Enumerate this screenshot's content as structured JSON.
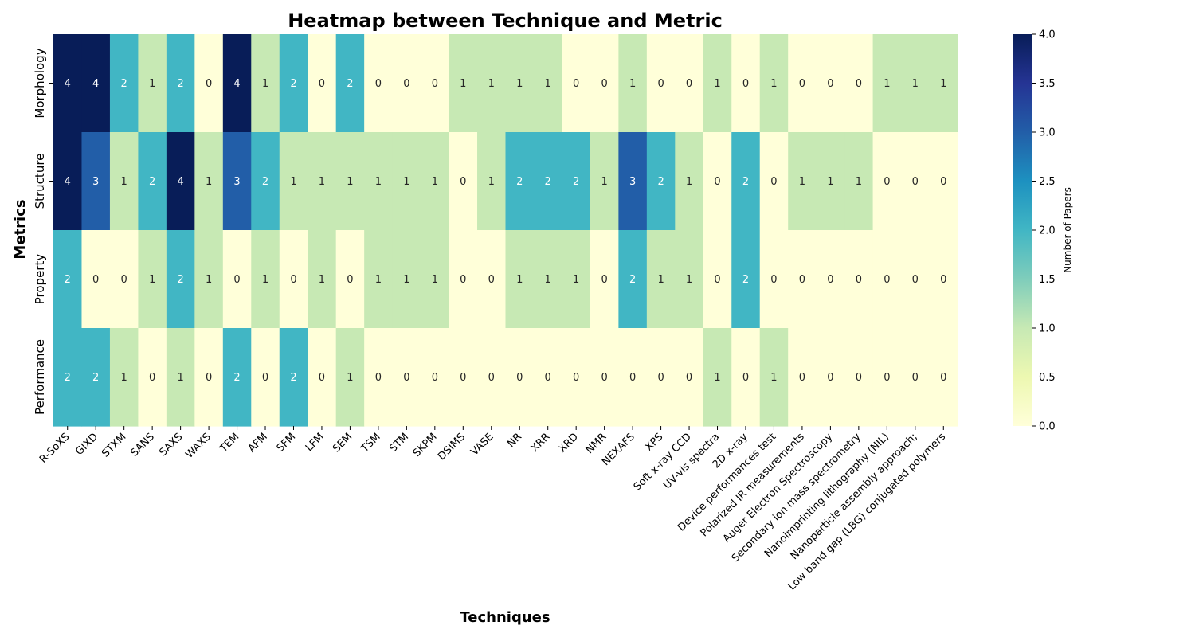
{
  "chart_data": {
    "type": "heatmap",
    "title": "Heatmap between Technique and Metric",
    "xlabel": "Techniques",
    "ylabel": "Metrics",
    "colorbar_label": "Number of Papers",
    "colormap": "YlGnBu",
    "vmin": 0,
    "vmax": 4,
    "colorbar_ticks": [
      "0.0",
      "0.5",
      "1.0",
      "1.5",
      "2.0",
      "2.5",
      "3.0",
      "3.5",
      "4.0"
    ],
    "columns": [
      "R-SoXS",
      "GIXD",
      "STXM",
      "SANS",
      "SAXS",
      "WAXS",
      "TEM",
      "AFM",
      "SFM",
      "LFM",
      "SEM",
      "TSM",
      "STM",
      "SKPM",
      "DSIMS",
      "VASE",
      "NR",
      "XRR",
      "XRD",
      "NMR",
      "NEXAFS",
      "XPS",
      "Soft x-ray CCD",
      "UV-vis spectra",
      "2D x-ray",
      "Device performances test",
      "Polarized IR measurements",
      "Auger Electron Spectroscopy",
      "Secondary ion mass spectrometry",
      "Nanoimprinting lithography (NIL)",
      "Nanoparticle assembly approach;",
      "Low band gap (LBG) conjugated polymers"
    ],
    "rows": [
      "Morphology",
      "Structure",
      "Property",
      "Performance"
    ],
    "values": [
      [
        4,
        4,
        2,
        1,
        2,
        0,
        4,
        1,
        2,
        0,
        2,
        0,
        0,
        0,
        1,
        1,
        1,
        1,
        0,
        0,
        1,
        0,
        0,
        1,
        0,
        1,
        0,
        0,
        0,
        1,
        1,
        1
      ],
      [
        4,
        3,
        1,
        2,
        4,
        1,
        3,
        2,
        1,
        1,
        1,
        1,
        1,
        1,
        0,
        1,
        2,
        2,
        2,
        1,
        3,
        2,
        1,
        0,
        2,
        0,
        1,
        1,
        1,
        0,
        0,
        0
      ],
      [
        2,
        0,
        0,
        1,
        2,
        1,
        0,
        1,
        0,
        1,
        0,
        1,
        1,
        1,
        0,
        0,
        1,
        1,
        1,
        0,
        2,
        1,
        1,
        0,
        2,
        0,
        0,
        0,
        0,
        0,
        0,
        0
      ],
      [
        2,
        2,
        1,
        0,
        1,
        0,
        2,
        0,
        2,
        0,
        1,
        0,
        0,
        0,
        0,
        0,
        0,
        0,
        0,
        0,
        0,
        0,
        0,
        1,
        0,
        1,
        0,
        0,
        0,
        0,
        0,
        0
      ]
    ],
    "annotations": true,
    "grid": false
  }
}
